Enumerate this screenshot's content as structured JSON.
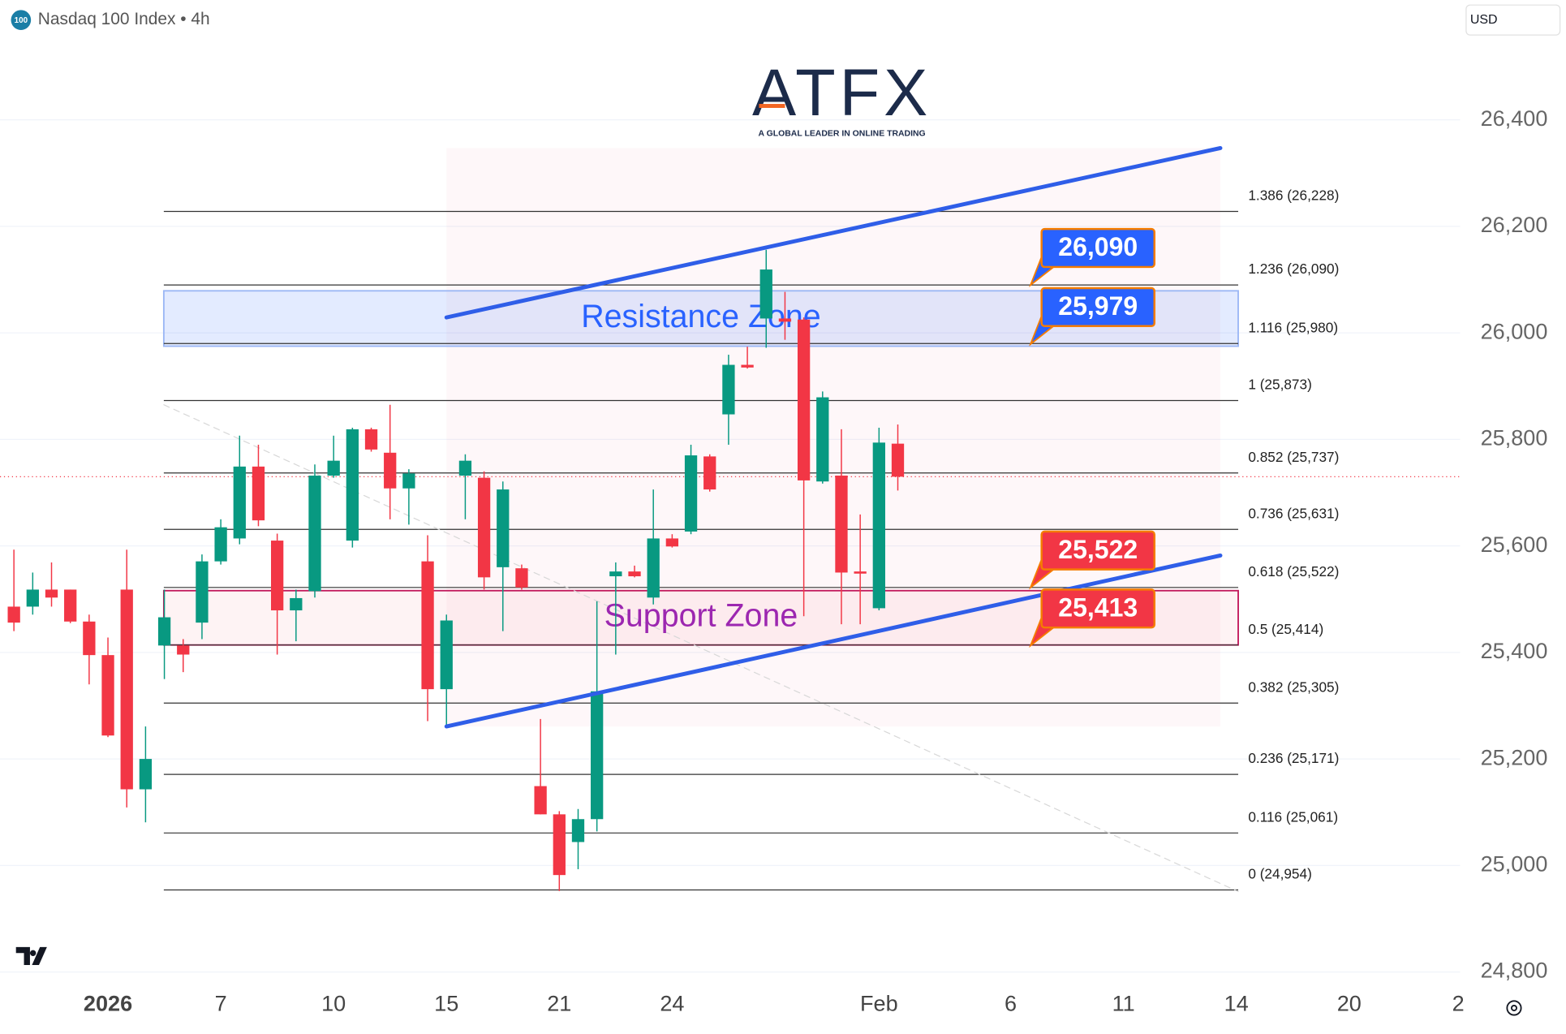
{
  "title": "Nasdaq 100 Index • 4h",
  "badge": "100",
  "currency": "USD",
  "logo": {
    "name": "ATFX",
    "tagline": "A GLOBAL LEADER IN ONLINE TRADING"
  },
  "chart_data": {
    "type": "candlestick",
    "up_color": "#089981",
    "down_color": "#f23645",
    "x": [
      0,
      1,
      2,
      3,
      4,
      5,
      6,
      7,
      8,
      9,
      10,
      11,
      12,
      13,
      14,
      15,
      16,
      17,
      18,
      19,
      20,
      21,
      22,
      23,
      24,
      25,
      26,
      27,
      28,
      29,
      30,
      31,
      32,
      33,
      34,
      35,
      36,
      37,
      38,
      39,
      40,
      41,
      42,
      43,
      44,
      45,
      46,
      47
    ],
    "open": [
      25486,
      25486,
      25518,
      25518,
      25458,
      25395,
      25518,
      25143,
      25413,
      25413,
      25456,
      25571,
      25614,
      25749,
      25610,
      25479,
      25515,
      25732,
      25610,
      25819,
      25775,
      25708,
      25571,
      25331,
      25732,
      25728,
      25560,
      25558,
      25149,
      25096,
      25044,
      25087,
      25543,
      25552,
      25503,
      25614,
      25627,
      25768,
      25847,
      25940,
      26027,
      26027,
      26025,
      25721,
      25732,
      25552,
      25483,
      25792
    ],
    "high": [
      25593,
      25550,
      25569,
      25518,
      25471,
      25428,
      25593,
      25261,
      25518,
      25425,
      25584,
      25650,
      25807,
      25790,
      25623,
      25518,
      25753,
      25807,
      25822,
      25822,
      25865,
      25744,
      25620,
      25471,
      25772,
      25740,
      25721,
      25565,
      25275,
      25102,
      25106,
      25496,
      25569,
      25563,
      25706,
      25622,
      25790,
      25772,
      25959,
      25974,
      26156,
      26077,
      26029,
      25890,
      25819,
      25659,
      25822,
      25828
    ],
    "low": [
      25440,
      25471,
      25486,
      25455,
      25340,
      25241,
      25109,
      25081,
      25350,
      25363,
      25425,
      25565,
      25603,
      25637,
      25396,
      25421,
      25503,
      25728,
      25597,
      25777,
      25650,
      25640,
      25271,
      25260,
      25650,
      25518,
      25440,
      25518,
      25096,
      24952,
      24993,
      25064,
      25396,
      25541,
      25490,
      25597,
      25622,
      25702,
      25790,
      25933,
      25972,
      25987,
      25468,
      25717,
      25453,
      25453,
      25479,
      25704
    ],
    "close": [
      25456,
      25518,
      25503,
      25458,
      25395,
      25244,
      25143,
      25200,
      25466,
      25396,
      25571,
      25635,
      25749,
      25648,
      25479,
      25502,
      25732,
      25760,
      25819,
      25781,
      25708,
      25736,
      25331,
      25460,
      25760,
      25541,
      25706,
      25522,
      25096,
      24982,
      25087,
      25327,
      25552,
      25543,
      25614,
      25599,
      25770,
      25706,
      25940,
      25935,
      26119,
      26021,
      25723,
      25879,
      25550,
      25548,
      25794,
      25730
    ],
    "xlim": [
      -0.74,
      76.9
    ],
    "xticks": [
      {
        "value": 5,
        "label": "2026",
        "bold": true
      },
      {
        "value": 11,
        "label": "7"
      },
      {
        "value": 17,
        "label": "10"
      },
      {
        "value": 23,
        "label": "15"
      },
      {
        "value": 29,
        "label": "21"
      },
      {
        "value": 35,
        "label": "24"
      },
      {
        "value": 46,
        "label": "Feb"
      },
      {
        "value": 53,
        "label": "6"
      },
      {
        "value": 59,
        "label": "11"
      },
      {
        "value": 65,
        "label": "14"
      },
      {
        "value": 71,
        "label": "20"
      },
      {
        "value": 76.8,
        "label": "2"
      }
    ],
    "ylim": [
      24768,
      26625
    ],
    "yticks": [
      {
        "value": 26400,
        "label": "26,400"
      },
      {
        "value": 26200,
        "label": "26,200"
      },
      {
        "value": 26000,
        "label": "26,000"
      },
      {
        "value": 25800,
        "label": "25,800"
      },
      {
        "value": 25600,
        "label": "25,600"
      },
      {
        "value": 25400,
        "label": "25,400"
      },
      {
        "value": 25200,
        "label": "25,200"
      },
      {
        "value": 25000,
        "label": "25,000"
      },
      {
        "value": 24800,
        "label": "24,800"
      }
    ],
    "grid": true,
    "fib_x": [
      7.97,
      65.1
    ],
    "fib_levels": [
      {
        "value": 26228,
        "label": "1.386 (26,228)"
      },
      {
        "value": 26090,
        "label": "1.236 (26,090)"
      },
      {
        "value": 25980,
        "label": "1.116 (25,980)"
      },
      {
        "value": 25873,
        "label": "1 (25,873)"
      },
      {
        "value": 25737,
        "label": "0.852 (25,737)"
      },
      {
        "value": 25631,
        "label": "0.736 (25,631)"
      },
      {
        "value": 25522,
        "label": "0.618 (25,522)"
      },
      {
        "value": 25414,
        "label": "0.5 (25,414)"
      },
      {
        "value": 25305,
        "label": "0.382 (25,305)"
      },
      {
        "value": 25171,
        "label": "0.236 (25,171)"
      },
      {
        "value": 25061,
        "label": "0.116 (25,061)"
      },
      {
        "value": 24954,
        "label": "0 (24,954)"
      }
    ],
    "zones": [
      {
        "label": "Resistance Zone",
        "top": 26079,
        "bottom": 25975,
        "x": [
          7.97,
          65.1
        ],
        "fill": "rgba(41,98,255,0.13)",
        "stroke": "#9bb7f5",
        "text_color": "#2962ff"
      },
      {
        "label": "Support Zone",
        "top": 25516,
        "bottom": 25414,
        "x": [
          7.97,
          65.1
        ],
        "fill": "rgba(242,54,69,0.06)",
        "stroke": "#c2185b",
        "text_color": "#9c27b0"
      }
    ],
    "trendlines": [
      {
        "x": [
          23,
          64.15
        ],
        "y": [
          26029,
          26347
        ],
        "color": "#2f5ee8",
        "dashed": false
      },
      {
        "x": [
          23,
          64.15
        ],
        "y": [
          25261,
          25582
        ],
        "color": "#2f5ee8",
        "dashed": false
      },
      {
        "x": [
          7.97,
          65.1
        ],
        "y": [
          25865,
          24951
        ],
        "color": "#d8d8d8",
        "dashed": true
      }
    ],
    "callout_x": 54.06,
    "callouts": [
      {
        "value": 26090,
        "label": "26,090",
        "color": "#2962ff"
      },
      {
        "value": 25979,
        "label": "25,979",
        "color": "#2962ff"
      },
      {
        "value": 25522,
        "label": "25,522",
        "color": "#f23645"
      },
      {
        "value": 25413,
        "label": "25,413",
        "color": "#f23645"
      }
    ]
  }
}
